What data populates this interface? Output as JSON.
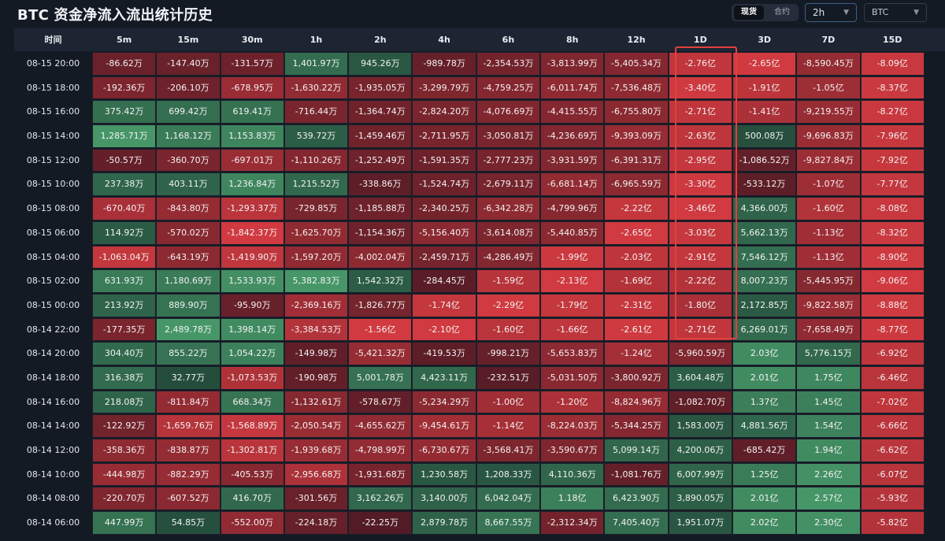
{
  "title": "BTC 资金净流入流出统计历史",
  "market_toggle": {
    "spot": "现货",
    "contract": "合约",
    "active": "spot"
  },
  "interval_select": {
    "value": "2h",
    "chevron_icon": "chevron-down-icon"
  },
  "coin_select": {
    "value": "BTC",
    "chevron_icon": "chevron-down-icon"
  },
  "highlight_column": "1D",
  "table": {
    "time_header": "时间",
    "columns": [
      "5m",
      "15m",
      "30m",
      "1h",
      "2h",
      "4h",
      "6h",
      "8h",
      "12h",
      "1D",
      "3D",
      "7D",
      "15D"
    ],
    "rows": [
      {
        "time": "08-15 20:00",
        "cells": [
          "-86.62万",
          "-147.40万",
          "-131.57万",
          "1,401.97万",
          "945.26万",
          "-989.78万",
          "-2,354.53万",
          "-3,813.99万",
          "-5,405.34万",
          "-2.76亿",
          "-2.65亿",
          "-8,590.45万",
          "-8.09亿"
        ]
      },
      {
        "time": "08-15 18:00",
        "cells": [
          "-192.36万",
          "-206.10万",
          "-678.95万",
          "-1,630.22万",
          "-1,935.05万",
          "-3,299.79万",
          "-4,759.25万",
          "-6,011.74万",
          "-7,536.48万",
          "-3.40亿",
          "-1.91亿",
          "-1.05亿",
          "-8.37亿"
        ]
      },
      {
        "time": "08-15 16:00",
        "cells": [
          "375.42万",
          "699.42万",
          "619.41万",
          "-716.44万",
          "-1,364.74万",
          "-2,824.20万",
          "-4,076.69万",
          "-4,415.55万",
          "-6,755.80万",
          "-2.71亿",
          "-1.41亿",
          "-9,219.55万",
          "-8.27亿"
        ]
      },
      {
        "time": "08-15 14:00",
        "cells": [
          "1,285.71万",
          "1,168.12万",
          "1,153.83万",
          "539.72万",
          "-1,459.46万",
          "-2,711.95万",
          "-3,050.81万",
          "-4,236.69万",
          "-9,393.09万",
          "-2.63亿",
          "500.08万",
          "-9,696.83万",
          "-7.96亿"
        ]
      },
      {
        "time": "08-15 12:00",
        "cells": [
          "-50.57万",
          "-360.70万",
          "-697.01万",
          "-1,110.26万",
          "-1,252.49万",
          "-1,591.35万",
          "-2,777.23万",
          "-3,931.59万",
          "-6,391.31万",
          "-2.95亿",
          "-1,086.52万",
          "-9,827.84万",
          "-7.92亿"
        ]
      },
      {
        "time": "08-15 10:00",
        "cells": [
          "237.38万",
          "403.11万",
          "1,236.84万",
          "1,215.52万",
          "-338.86万",
          "-1,524.74万",
          "-2,679.11万",
          "-6,681.14万",
          "-6,965.59万",
          "-3.30亿",
          "-533.12万",
          "-1.07亿",
          "-7.77亿"
        ]
      },
      {
        "time": "08-15 08:00",
        "cells": [
          "-670.40万",
          "-843.80万",
          "-1,293.37万",
          "-729.85万",
          "-1,185.88万",
          "-2,340.25万",
          "-6,342.28万",
          "-4,799.96万",
          "-2.22亿",
          "-3.46亿",
          "4,366.00万",
          "-1.60亿",
          "-8.08亿"
        ]
      },
      {
        "time": "08-15 06:00",
        "cells": [
          "114.92万",
          "-570.02万",
          "-1,842.37万",
          "-1,625.70万",
          "-1,154.36万",
          "-5,156.40万",
          "-3,614.08万",
          "-5,440.85万",
          "-2.65亿",
          "-3.03亿",
          "5,662.13万",
          "-1.13亿",
          "-8.32亿"
        ]
      },
      {
        "time": "08-15 04:00",
        "cells": [
          "-1,063.04万",
          "-643.19万",
          "-1,419.90万",
          "-1,597.20万",
          "-4,002.04万",
          "-2,459.71万",
          "-4,286.49万",
          "-1.99亿",
          "-2.03亿",
          "-2.91亿",
          "7,546.12万",
          "-1.13亿",
          "-8.90亿"
        ]
      },
      {
        "time": "08-15 02:00",
        "cells": [
          "631.93万",
          "1,180.69万",
          "1,533.93万",
          "5,382.83万",
          "1,542.32万",
          "-284.45万",
          "-1.59亿",
          "-2.13亿",
          "-1.69亿",
          "-2.22亿",
          "8,007.23万",
          "-5,445.95万",
          "-9.06亿"
        ]
      },
      {
        "time": "08-15 00:00",
        "cells": [
          "213.92万",
          "889.90万",
          "-95.90万",
          "-2,369.16万",
          "-1,826.77万",
          "-1.74亿",
          "-2.29亿",
          "-1.79亿",
          "-2.31亿",
          "-1.80亿",
          "2,172.85万",
          "-9,822.58万",
          "-8.88亿"
        ]
      },
      {
        "time": "08-14 22:00",
        "cells": [
          "-177.35万",
          "2,489.78万",
          "1,398.14万",
          "-3,384.53万",
          "-1.56亿",
          "-2.10亿",
          "-1.60亿",
          "-1.66亿",
          "-2.61亿",
          "-2.71亿",
          "6,269.01万",
          "-7,658.49万",
          "-8.77亿"
        ]
      },
      {
        "time": "08-14 20:00",
        "cells": [
          "304.40万",
          "855.22万",
          "1,054.22万",
          "-149.98万",
          "-5,421.32万",
          "-419.53万",
          "-998.21万",
          "-5,653.83万",
          "-1.24亿",
          "-5,960.59万",
          "2.03亿",
          "5,776.15万",
          "-6.92亿"
        ]
      },
      {
        "time": "08-14 18:00",
        "cells": [
          "316.38万",
          "32.77万",
          "-1,073.53万",
          "-190.98万",
          "5,001.78万",
          "4,423.11万",
          "-232.51万",
          "-5,031.50万",
          "-3,800.92万",
          "3,604.48万",
          "2.01亿",
          "1.75亿",
          "-6.46亿"
        ]
      },
      {
        "time": "08-14 16:00",
        "cells": [
          "218.08万",
          "-811.84万",
          "668.34万",
          "-1,132.61万",
          "-578.67万",
          "-5,234.29万",
          "-1.00亿",
          "-1.20亿",
          "-8,824.96万",
          "-1,082.70万",
          "1.37亿",
          "1.45亿",
          "-7.02亿"
        ]
      },
      {
        "time": "08-14 14:00",
        "cells": [
          "-122.92万",
          "-1,659.76万",
          "-1,568.89万",
          "-2,050.54万",
          "-4,655.62万",
          "-9,454.61万",
          "-1.14亿",
          "-8,224.03万",
          "-5,344.25万",
          "1,583.00万",
          "4,881.56万",
          "1.54亿",
          "-6.66亿"
        ]
      },
      {
        "time": "08-14 12:00",
        "cells": [
          "-358.36万",
          "-838.87万",
          "-1,302.81万",
          "-1,939.68万",
          "-4,798.99万",
          "-6,730.67万",
          "-3,568.41万",
          "-3,590.67万",
          "5,099.14万",
          "4,200.06万",
          "-685.42万",
          "1.94亿",
          "-6.62亿"
        ]
      },
      {
        "time": "08-14 10:00",
        "cells": [
          "-444.98万",
          "-882.29万",
          "-405.53万",
          "-2,956.68万",
          "-1,931.68万",
          "1,230.58万",
          "1,208.33万",
          "4,110.36万",
          "-1,081.76万",
          "6,007.99万",
          "1.25亿",
          "2.26亿",
          "-6.07亿"
        ]
      },
      {
        "time": "08-14 08:00",
        "cells": [
          "-220.70万",
          "-607.52万",
          "416.70万",
          "-301.56万",
          "3,162.26万",
          "3,140.00万",
          "6,042.04万",
          "1.18亿",
          "6,423.90万",
          "3,890.05万",
          "2.01亿",
          "2.57亿",
          "-5.93亿"
        ]
      },
      {
        "time": "08-14 06:00",
        "cells": [
          "447.99万",
          "54.85万",
          "-552.00万",
          "-224.18万",
          "-22.25万",
          "2,879.78万",
          "8,667.55万",
          "-2,312.34万",
          "7,405.40万",
          "1,951.07万",
          "2.02亿",
          "2.30亿",
          "-5.82亿"
        ]
      }
    ]
  },
  "colors": {
    "background": "#141a24",
    "header_bg": "#1e2532",
    "highlight_border": "#e0403f",
    "positive": "#3a8a5e",
    "negative": "#c0393f"
  }
}
